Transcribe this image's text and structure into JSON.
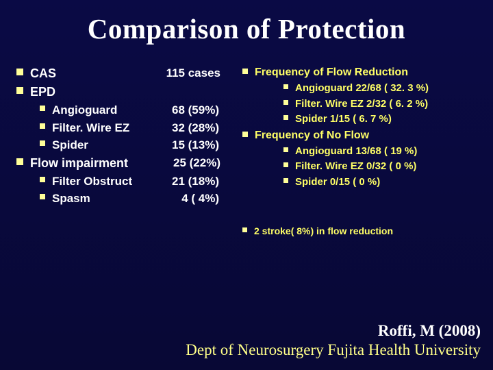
{
  "title": "Comparison of Protection",
  "left": {
    "items": [
      {
        "level": 0,
        "label": "CAS",
        "value": "115 cases"
      },
      {
        "level": 0,
        "label": "EPD",
        "value": ""
      },
      {
        "level": 1,
        "label": "Angioguard",
        "value": "68 (59%)"
      },
      {
        "level": 1,
        "label": "Filter. Wire EZ",
        "value": "32 (28%)"
      },
      {
        "level": 1,
        "label": "Spider",
        "value": "15 (13%)"
      },
      {
        "level": 0,
        "label": "Flow impairment",
        "value": "25 (22%)"
      },
      {
        "level": 1,
        "label": "Filter Obstruct",
        "value": "21 (18%)"
      },
      {
        "level": 1,
        "label": "Spasm",
        "value": "  4 ( 4%)"
      }
    ]
  },
  "right": {
    "items": [
      {
        "level": 0,
        "label": "Frequency of Flow Reduction"
      },
      {
        "level": 1,
        "label": "Angioguard  22/68 ( 32. 3 %)"
      },
      {
        "level": 1,
        "label": "Filter. Wire EZ 2/32 ( 6. 2 %)"
      },
      {
        "level": 1,
        "label": "Spider               1/15 ( 6. 7 %)"
      },
      {
        "level": 0,
        "label": "Frequency of No Flow"
      },
      {
        "level": 1,
        "label": "Angioguard  13/68 ( 19 %)"
      },
      {
        "level": 1,
        "label": "Filter. Wire EZ  0/32 ( 0 %)"
      },
      {
        "level": 1,
        "label": "Spider               0/15 ( 0 %)"
      }
    ],
    "note": "2 stroke( 8%) in flow reduction"
  },
  "footer": {
    "citation": "Roffi, M   (2008)",
    "dept": "Dept of Neurosurgery Fujita Health University"
  }
}
